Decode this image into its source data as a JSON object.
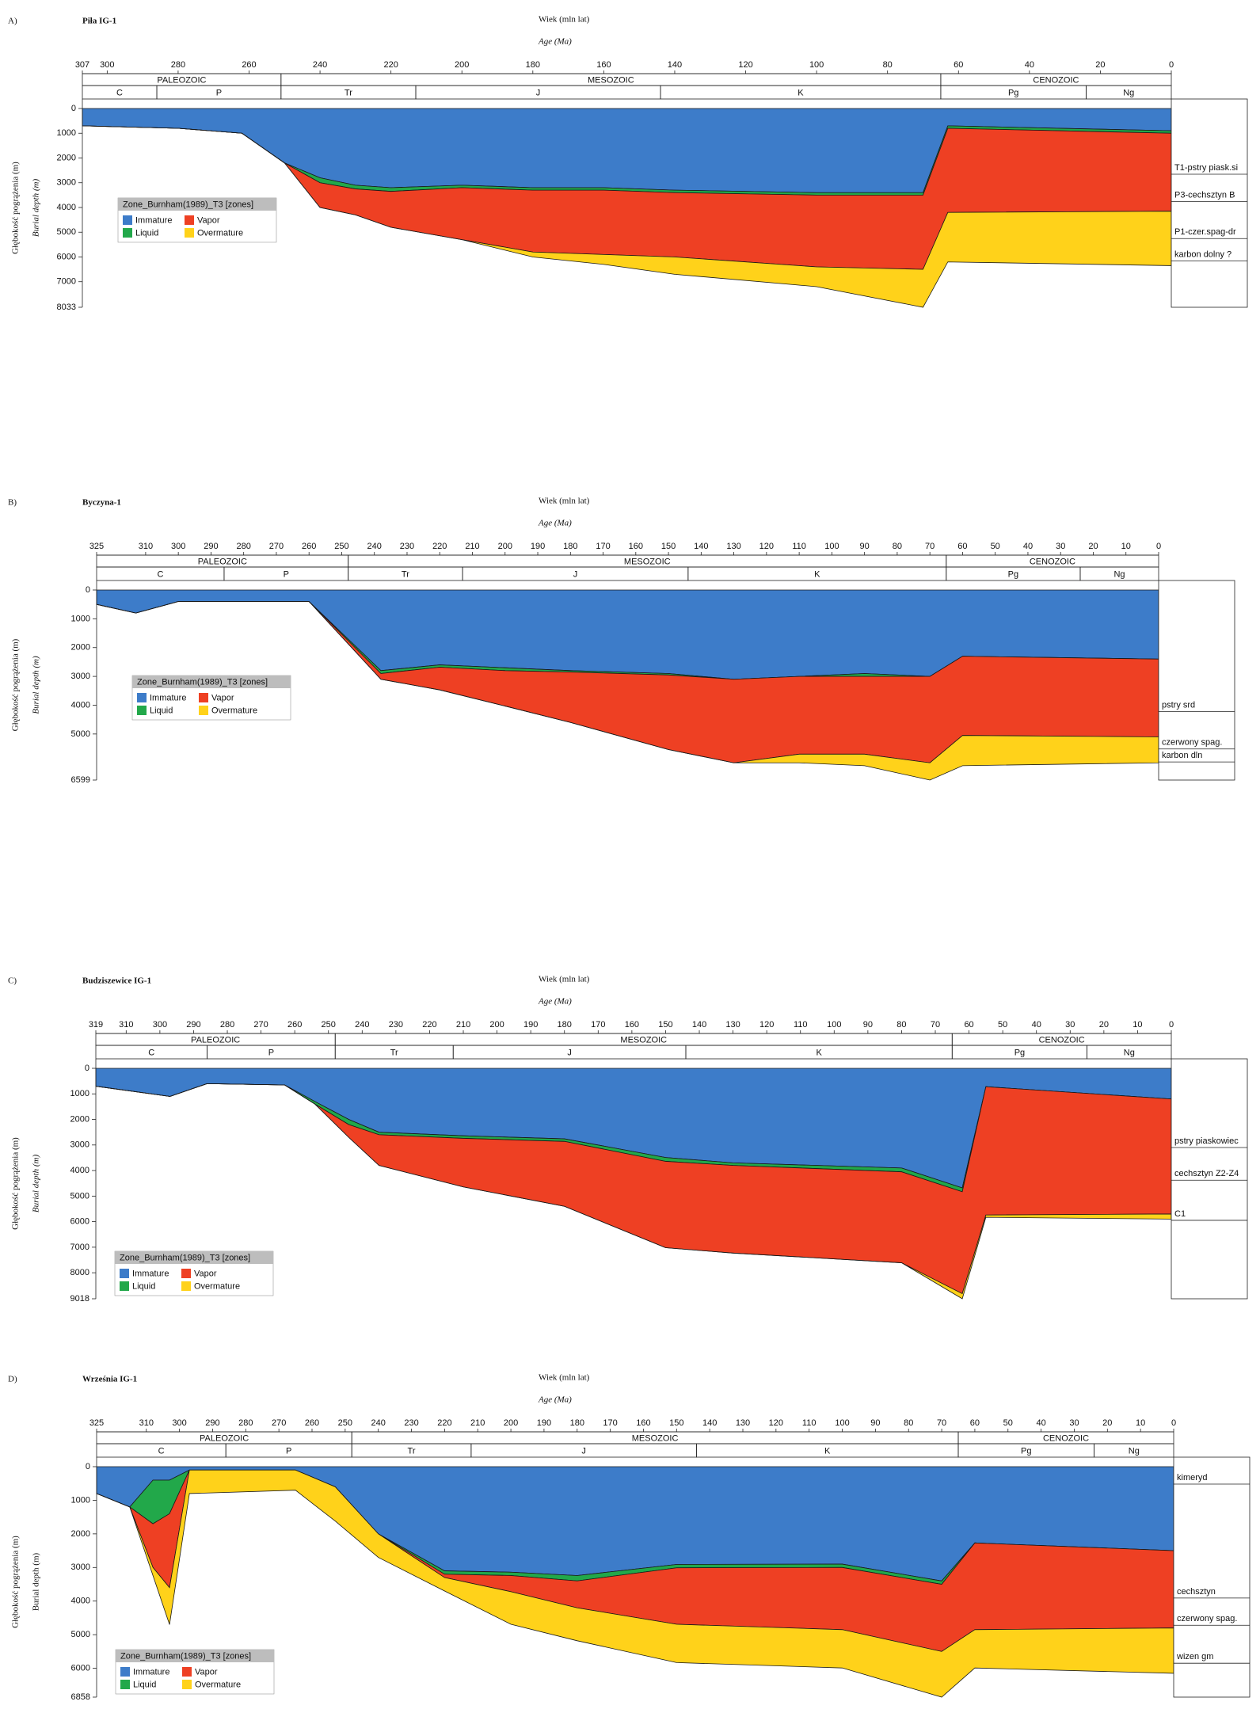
{
  "chart_data": [
    {
      "type": "area",
      "panel": "A)",
      "title": "Piła IG-1",
      "xlabel": "Wiek (mln lat)",
      "xlabel_en": "Age (Ma)",
      "ylabel": "Głębokość pogrążenia (m)",
      "ylabel_en": "Burial depth (m)",
      "ylabel_en_style": "italic",
      "xlim": [
        307,
        0
      ],
      "xticks": [
        307,
        300,
        280,
        260,
        240,
        220,
        200,
        180,
        160,
        140,
        120,
        100,
        80,
        60,
        40,
        20,
        0
      ],
      "ylim": [
        8033,
        0
      ],
      "yticks": [
        0,
        1000,
        2000,
        3000,
        4000,
        5000,
        6000,
        7000,
        8033
      ],
      "eras": [
        {
          "name": "PALEOZOIC",
          "start": 307,
          "end": 251
        },
        {
          "name": "MESOZOIC",
          "start": 251,
          "end": 65
        },
        {
          "name": "CENOZOIC",
          "start": 65,
          "end": 0
        }
      ],
      "periods": [
        {
          "name": "C",
          "start": 307,
          "end": 286
        },
        {
          "name": "P",
          "start": 286,
          "end": 251
        },
        {
          "name": "Tr",
          "start": 251,
          "end": 213
        },
        {
          "name": "J",
          "start": 213,
          "end": 144
        },
        {
          "name": "K",
          "start": 144,
          "end": 65
        },
        {
          "name": "Pg",
          "start": 65,
          "end": 24
        },
        {
          "name": "Ng",
          "start": 24,
          "end": 0
        }
      ],
      "legend": {
        "title": "Zone_Burnham(1989)_T3 [zones]",
        "position": "left"
      },
      "x": [
        307,
        280,
        262,
        250,
        240,
        230,
        220,
        200,
        180,
        160,
        140,
        100,
        70,
        63,
        0
      ],
      "series": [
        {
          "name": "Immature",
          "color": "#3d7cc9",
          "values": [
            700,
            800,
            1000,
            2200,
            2800,
            3100,
            3200,
            3100,
            3200,
            3200,
            3300,
            3400,
            3400,
            700,
            900
          ]
        },
        {
          "name": "Liquid",
          "color": "#22a84a",
          "values": [
            0,
            0,
            0,
            0,
            200,
            150,
            150,
            100,
            100,
            100,
            100,
            100,
            100,
            100,
            100
          ]
        },
        {
          "name": "Vapor",
          "color": "#ee4023",
          "values": [
            0,
            0,
            0,
            0,
            1000,
            1050,
            1450,
            2100,
            2500,
            2600,
            2600,
            2900,
            3000,
            3400,
            3150
          ]
        },
        {
          "name": "Overmature",
          "color": "#ffd21a",
          "values": [
            0,
            0,
            0,
            0,
            0,
            0,
            0,
            0,
            200,
            400,
            700,
            800,
            1533,
            2000,
            2200
          ]
        }
      ],
      "formations": [
        {
          "label": "T1-pstry piask.si",
          "depth": 2400
        },
        {
          "label": "P3-cechsztyn B",
          "depth": 3500
        },
        {
          "label": "P1-czer.spag-dr",
          "depth": 5000
        },
        {
          "label": "karbon dolny ?",
          "depth": 5900
        }
      ]
    },
    {
      "type": "area",
      "panel": "B)",
      "title": "Byczyna-1",
      "xlabel": "Wiek (mln lat)",
      "xlabel_en": "Age (Ma)",
      "ylabel": "Głębokość pogrążenia (m)",
      "ylabel_en": "Burial depth (m)",
      "ylabel_en_style": "italic",
      "xlim": [
        325,
        0
      ],
      "xticks": [
        325,
        310,
        300,
        290,
        280,
        270,
        260,
        250,
        240,
        230,
        220,
        210,
        200,
        190,
        180,
        170,
        160,
        150,
        140,
        130,
        120,
        110,
        100,
        90,
        80,
        70,
        60,
        50,
        40,
        30,
        20,
        10,
        0
      ],
      "ylim": [
        6599,
        0
      ],
      "yticks": [
        0,
        1000,
        2000,
        3000,
        4000,
        5000,
        6599
      ],
      "eras": [
        {
          "name": "PALEOZOIC",
          "start": 325,
          "end": 248
        },
        {
          "name": "MESOZOIC",
          "start": 248,
          "end": 65
        },
        {
          "name": "CENOZOIC",
          "start": 65,
          "end": 0
        }
      ],
      "periods": [
        {
          "name": "C",
          "start": 325,
          "end": 286
        },
        {
          "name": "P",
          "start": 286,
          "end": 248
        },
        {
          "name": "Tr",
          "start": 248,
          "end": 213
        },
        {
          "name": "J",
          "start": 213,
          "end": 144
        },
        {
          "name": "K",
          "start": 144,
          "end": 65
        },
        {
          "name": "Pg",
          "start": 65,
          "end": 24
        },
        {
          "name": "Ng",
          "start": 24,
          "end": 0
        }
      ],
      "legend": {
        "title": "Zone_Burnham(1989)_T3 [zones]",
        "position": "left"
      },
      "x": [
        325,
        313,
        300,
        260,
        238,
        220,
        200,
        180,
        150,
        130,
        110,
        90,
        70,
        60,
        0
      ],
      "series": [
        {
          "name": "Immature",
          "color": "#3d7cc9",
          "values": [
            500,
            800,
            400,
            400,
            2800,
            2600,
            2700,
            2800,
            2900,
            3100,
            3000,
            2900,
            3000,
            2300,
            2400
          ]
        },
        {
          "name": "Liquid",
          "color": "#22a84a",
          "values": [
            0,
            0,
            0,
            0,
            100,
            80,
            100,
            50,
            50,
            0,
            0,
            100,
            0,
            0,
            0
          ]
        },
        {
          "name": "Vapor",
          "color": "#ee4023",
          "values": [
            0,
            0,
            0,
            0,
            200,
            790,
            1230,
            1750,
            2590,
            2900,
            2700,
            2700,
            3000,
            2750,
            2700
          ]
        },
        {
          "name": "Overmature",
          "color": "#ffd21a",
          "values": [
            0,
            0,
            0,
            0,
            0,
            0,
            0,
            0,
            0,
            0,
            300,
            400,
            599,
            1050,
            900
          ]
        }
      ],
      "formations": [
        {
          "label": "pstry srd",
          "depth": 4000
        },
        {
          "label": "czerwony spag.",
          "depth": 5300
        },
        {
          "label": "karbon dln",
          "depth": 5750
        }
      ]
    },
    {
      "type": "area",
      "panel": "C)",
      "title": "Budziszewice IG-1",
      "xlabel": "Wiek (mln lat)",
      "xlabel_en": "Age (Ma)",
      "ylabel": "Głębokość pogrążenia (m)",
      "ylabel_en": "Burial depth (m)",
      "ylabel_en_style": "italic",
      "xlim": [
        319,
        0
      ],
      "xticks": [
        319,
        310,
        300,
        290,
        280,
        270,
        260,
        250,
        240,
        230,
        220,
        210,
        200,
        190,
        180,
        170,
        160,
        150,
        140,
        130,
        120,
        110,
        100,
        90,
        80,
        70,
        60,
        50,
        40,
        30,
        20,
        10,
        0
      ],
      "ylim": [
        9018,
        0
      ],
      "yticks": [
        0,
        1000,
        2000,
        3000,
        4000,
        5000,
        6000,
        7000,
        8000,
        9018
      ],
      "eras": [
        {
          "name": "PALEOZOIC",
          "start": 319,
          "end": 248
        },
        {
          "name": "MESOZOIC",
          "start": 248,
          "end": 65
        },
        {
          "name": "CENOZOIC",
          "start": 65,
          "end": 0
        }
      ],
      "periods": [
        {
          "name": "C",
          "start": 319,
          "end": 286
        },
        {
          "name": "P",
          "start": 286,
          "end": 248
        },
        {
          "name": "Tr",
          "start": 248,
          "end": 213
        },
        {
          "name": "J",
          "start": 213,
          "end": 144
        },
        {
          "name": "K",
          "start": 144,
          "end": 65
        },
        {
          "name": "Pg",
          "start": 65,
          "end": 25
        },
        {
          "name": "Ng",
          "start": 25,
          "end": 0
        }
      ],
      "legend": {
        "title": "Zone_Burnham(1989)_T3 [zones]",
        "position": "bottom-left"
      },
      "x": [
        319,
        297,
        286,
        263,
        254,
        244,
        235,
        210,
        180,
        150,
        130,
        80,
        62,
        55,
        0
      ],
      "series": [
        {
          "name": "Immature",
          "color": "#3d7cc9",
          "values": [
            700,
            1100,
            600,
            650,
            1300,
            2000,
            2500,
            2640,
            2760,
            3490,
            3700,
            3900,
            4680,
            720,
            1200
          ]
        },
        {
          "name": "Liquid",
          "color": "#22a84a",
          "values": [
            0,
            0,
            0,
            0,
            100,
            200,
            100,
            100,
            100,
            150,
            100,
            150,
            150,
            0,
            0
          ]
        },
        {
          "name": "Vapor",
          "color": "#ee4023",
          "values": [
            0,
            0,
            0,
            0,
            0,
            500,
            1200,
            1900,
            2540,
            3380,
            3430,
            3560,
            3988,
            5020,
            4500
          ]
        },
        {
          "name": "Overmature",
          "color": "#ffd21a",
          "values": [
            0,
            0,
            0,
            0,
            0,
            0,
            0,
            0,
            0,
            0,
            0,
            0,
            200,
            90,
            200
          ]
        }
      ],
      "formations": [
        {
          "label": "pstry piaskowiec",
          "depth": 2850
        },
        {
          "label": "cechsztyn Z2-Z4",
          "depth": 4130
        },
        {
          "label": "C1",
          "depth": 5700
        }
      ]
    },
    {
      "type": "area",
      "panel": "D)",
      "title": "Września IG-1",
      "xlabel": "Wiek (mln lat)",
      "xlabel_en": "Age (Ma)",
      "ylabel": "Głębokość pogrążenia (m)",
      "ylabel_en": "Burial depth (m)",
      "ylabel_en_style": "normal",
      "xlim": [
        325,
        0
      ],
      "xticks": [
        325,
        310,
        300,
        290,
        280,
        270,
        260,
        250,
        240,
        230,
        220,
        210,
        200,
        190,
        180,
        170,
        160,
        150,
        140,
        130,
        120,
        110,
        100,
        90,
        80,
        70,
        60,
        50,
        40,
        30,
        20,
        10,
        0
      ],
      "ylim": [
        6858,
        0
      ],
      "yticks": [
        0,
        1000,
        2000,
        3000,
        4000,
        5000,
        6000,
        6858
      ],
      "eras": [
        {
          "name": "PALEOZOIC",
          "start": 325,
          "end": 248
        },
        {
          "name": "MESOZOIC",
          "start": 248,
          "end": 65
        },
        {
          "name": "CENOZOIC",
          "start": 65,
          "end": 0
        }
      ],
      "periods": [
        {
          "name": "C",
          "start": 325,
          "end": 286
        },
        {
          "name": "P",
          "start": 286,
          "end": 248
        },
        {
          "name": "Tr",
          "start": 248,
          "end": 212
        },
        {
          "name": "J",
          "start": 212,
          "end": 144
        },
        {
          "name": "K",
          "start": 144,
          "end": 65
        },
        {
          "name": "Pg",
          "start": 65,
          "end": 24
        },
        {
          "name": "Ng",
          "start": 24,
          "end": 0
        }
      ],
      "legend": {
        "title": "Zone_Burnham(1989)_T3 [zones]",
        "position": "bottom-left"
      },
      "x": [
        325,
        315,
        308,
        303,
        297,
        265,
        253,
        240,
        220,
        200,
        180,
        150,
        100,
        70,
        60,
        0
      ],
      "series": [
        {
          "name": "Immature",
          "color": "#3d7cc9",
          "values": [
            800,
            1200,
            400,
            400,
            100,
            100,
            600,
            2000,
            3100,
            3140,
            3240,
            2910,
            2900,
            3400,
            2270,
            2500
          ]
        },
        {
          "name": "Liquid",
          "color": "#22a84a",
          "values": [
            0,
            0,
            1300,
            1000,
            0,
            0,
            0,
            0,
            100,
            100,
            160,
            100,
            100,
            100,
            0,
            0
          ]
        },
        {
          "name": "Vapor",
          "color": "#ee4023",
          "values": [
            0,
            0,
            1300,
            2200,
            0,
            0,
            0,
            0,
            100,
            480,
            800,
            1680,
            1850,
            2000,
            2580,
            2300
          ]
        },
        {
          "name": "Overmature",
          "color": "#ffd21a",
          "values": [
            0,
            0,
            240,
            1100,
            700,
            600,
            1020,
            700,
            400,
            970,
            980,
            1140,
            1140,
            1358,
            1140,
            1350
          ]
        }
      ],
      "formations": [
        {
          "label": "kimeryd",
          "depth": 330
        },
        {
          "label": "cechsztyn",
          "depth": 3720
        },
        {
          "label": "czerwony spag.",
          "depth": 4530
        },
        {
          "label": "wizen gm",
          "depth": 5660
        }
      ]
    }
  ]
}
